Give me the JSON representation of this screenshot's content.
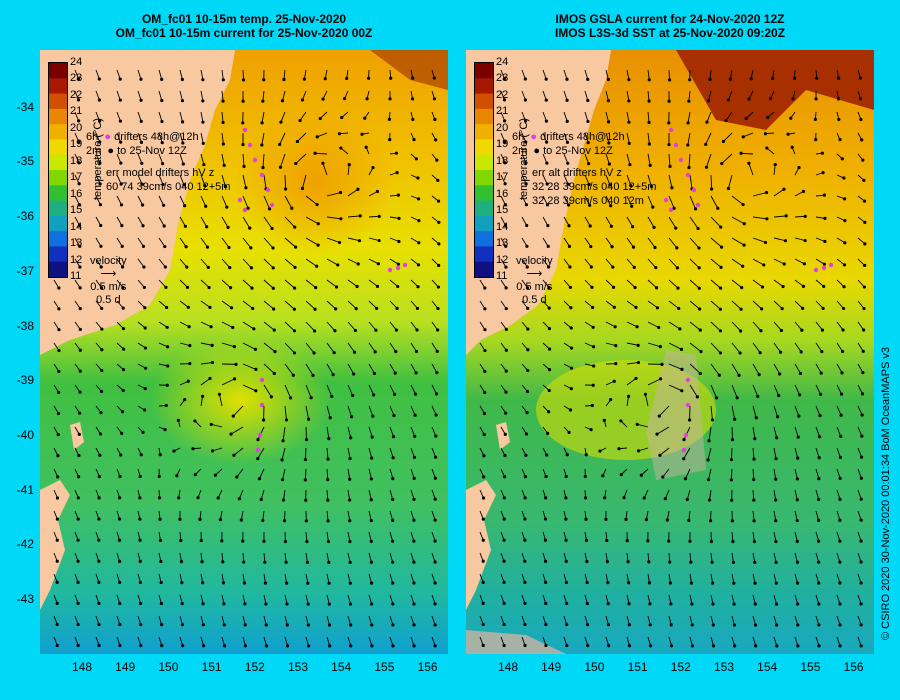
{
  "left_panel": {
    "title_line1": "OM_fc01 10-15m temp. 25-Nov-2020",
    "title_line2": "OM_fc01 10-15m current for 25-Nov-2020 00Z",
    "legend_drifters": "drifters 48h@12h",
    "legend_to": "to 25-Nov 12Z",
    "legend_time_a": "6h",
    "legend_time_b": "2m",
    "err_line1": "err model drifters hV z",
    "err_line2": "60 74 39cm/s 040 12+5m",
    "err_line3": ""
  },
  "right_panel": {
    "title_line1": "IMOS GSLA current for 24-Nov-2020 12Z",
    "title_line2": "IMOS L3S-3d SST at 25-Nov-2020 09:20Z",
    "legend_drifters": "drifters 48h@12h",
    "legend_to": "to 25-Nov 12Z",
    "legend_time_a": "6h",
    "legend_time_b": "2m",
    "err_line1": "err alt drifters hV z",
    "err_line2": "32 28 39cm/s 040 12+5m",
    "err_line3": "32 28 39cm/s 040 12m"
  },
  "colorbar": {
    "title": "temperature (°C)",
    "ticks": [
      "24",
      "23",
      "22",
      "21",
      "20",
      "19",
      "18",
      "17",
      "16",
      "15",
      "14",
      "13",
      "12",
      "11"
    ],
    "colors": [
      "#7a0000",
      "#a81800",
      "#d05000",
      "#e88800",
      "#f0b000",
      "#f0d800",
      "#c8e800",
      "#80d800",
      "#30c030",
      "#20b080",
      "#10a0c0",
      "#1070e0",
      "#1030c0",
      "#101080"
    ]
  },
  "velocity_legend": {
    "label": "velocity",
    "scale": "0.5 m/s",
    "duration": "0.5 d"
  },
  "latitudes": [
    "-34",
    "-35",
    "-36",
    "-37",
    "-38",
    "-39",
    "-40",
    "-41",
    "-42",
    "-43"
  ],
  "longitudes": [
    "148",
    "149",
    "150",
    "151",
    "152",
    "153",
    "154",
    "155",
    "156"
  ],
  "credit": "© CSIRO 2020   30-Nov-2020 00:01:34 BoM OceanMAPS v3",
  "colors": {
    "background": "#00d8f8",
    "land": "#f8c8a0",
    "drifter": "#e040e0",
    "missing": "#c8b4a0"
  }
}
